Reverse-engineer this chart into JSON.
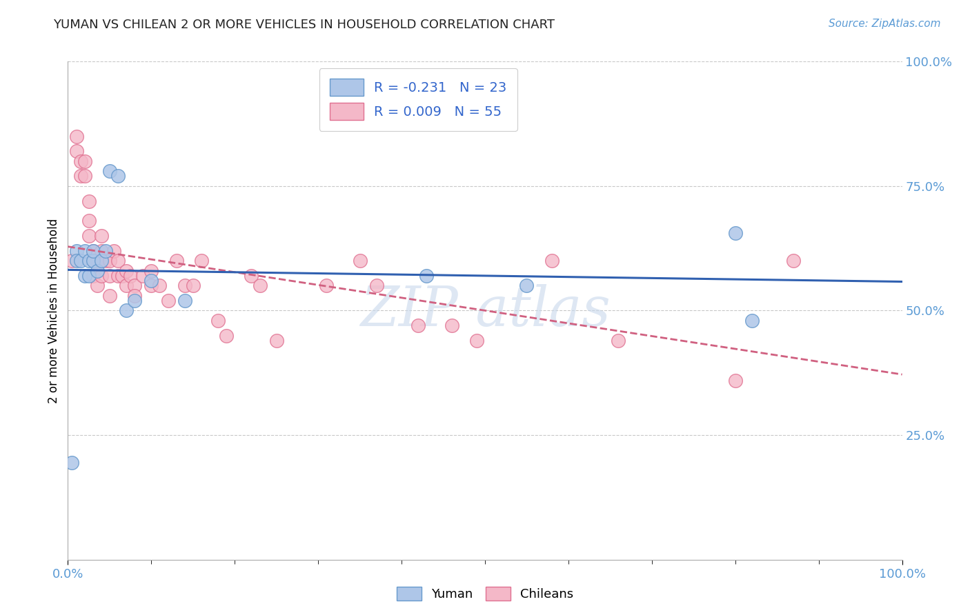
{
  "title": "YUMAN VS CHILEAN 2 OR MORE VEHICLES IN HOUSEHOLD CORRELATION CHART",
  "source_text": "Source: ZipAtlas.com",
  "ylabel": "2 or more Vehicles in Household",
  "xlim": [
    0.0,
    1.0
  ],
  "ylim": [
    0.0,
    1.0
  ],
  "ytick_vals": [
    0.25,
    0.5,
    0.75,
    1.0
  ],
  "ytick_labels": [
    "25.0%",
    "50.0%",
    "75.0%",
    "100.0%"
  ],
  "xtick_vals": [
    0.0,
    1.0
  ],
  "xtick_labels": [
    "0.0%",
    "100.0%"
  ],
  "grid_color": "#c8c8c8",
  "background_color": "#ffffff",
  "yuman_color": "#aec6e8",
  "yuman_edge_color": "#6699cc",
  "chilean_color": "#f4b8c8",
  "chilean_edge_color": "#e07090",
  "yuman_R": -0.231,
  "yuman_N": 23,
  "chilean_R": 0.009,
  "chilean_N": 55,
  "legend_x_label": "Yuman",
  "legend_y_label": "Chileans",
  "yuman_line_color": "#3060b0",
  "chilean_line_color": "#d06080",
  "tick_color": "#5b9bd5",
  "source_color": "#5b9bd5",
  "watermark_color": "#c8d8ec",
  "yuman_scatter_x": [
    0.005,
    0.01,
    0.01,
    0.015,
    0.02,
    0.02,
    0.025,
    0.025,
    0.03,
    0.03,
    0.035,
    0.04,
    0.045,
    0.05,
    0.06,
    0.07,
    0.08,
    0.1,
    0.14,
    0.43,
    0.55,
    0.8,
    0.82
  ],
  "yuman_scatter_y": [
    0.195,
    0.62,
    0.6,
    0.6,
    0.57,
    0.62,
    0.6,
    0.57,
    0.6,
    0.62,
    0.58,
    0.6,
    0.62,
    0.78,
    0.77,
    0.5,
    0.52,
    0.56,
    0.52,
    0.57,
    0.55,
    0.655,
    0.48
  ],
  "chilean_scatter_x": [
    0.005,
    0.01,
    0.01,
    0.015,
    0.015,
    0.02,
    0.02,
    0.025,
    0.025,
    0.025,
    0.03,
    0.03,
    0.03,
    0.035,
    0.035,
    0.04,
    0.04,
    0.04,
    0.045,
    0.05,
    0.05,
    0.05,
    0.055,
    0.06,
    0.06,
    0.065,
    0.07,
    0.07,
    0.075,
    0.08,
    0.08,
    0.09,
    0.1,
    0.1,
    0.11,
    0.12,
    0.13,
    0.14,
    0.15,
    0.16,
    0.18,
    0.19,
    0.22,
    0.23,
    0.25,
    0.31,
    0.35,
    0.37,
    0.42,
    0.46,
    0.49,
    0.58,
    0.66,
    0.8,
    0.87
  ],
  "chilean_scatter_y": [
    0.6,
    0.82,
    0.85,
    0.8,
    0.77,
    0.8,
    0.77,
    0.72,
    0.68,
    0.65,
    0.62,
    0.6,
    0.57,
    0.6,
    0.55,
    0.65,
    0.62,
    0.57,
    0.6,
    0.6,
    0.57,
    0.53,
    0.62,
    0.6,
    0.57,
    0.57,
    0.58,
    0.55,
    0.57,
    0.55,
    0.53,
    0.57,
    0.58,
    0.55,
    0.55,
    0.52,
    0.6,
    0.55,
    0.55,
    0.6,
    0.48,
    0.45,
    0.57,
    0.55,
    0.44,
    0.55,
    0.6,
    0.55,
    0.47,
    0.47,
    0.44,
    0.6,
    0.44,
    0.36,
    0.6
  ]
}
